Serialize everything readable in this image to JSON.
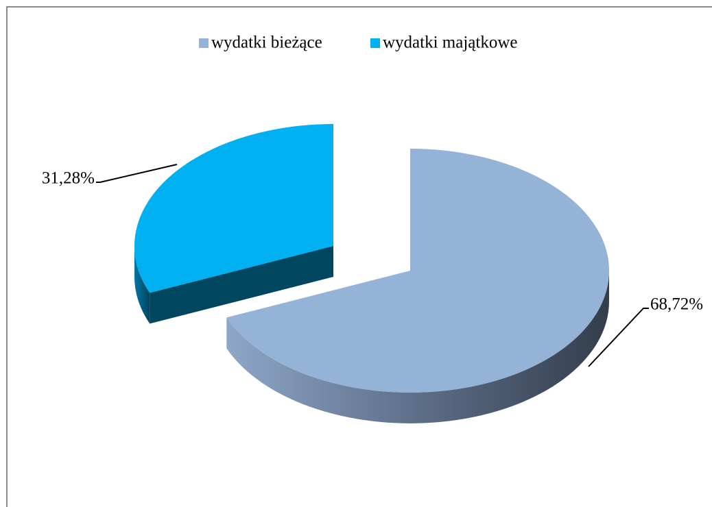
{
  "chart_data": {
    "type": "pie",
    "categories": [
      "wydatki bieżące",
      "wydatki majątkowe"
    ],
    "values": [
      68.72,
      31.28
    ],
    "value_labels": [
      "68,72%",
      "31,28%"
    ],
    "colors": [
      "#95b3d7",
      "#00b0f0"
    ],
    "legend": "top"
  }
}
